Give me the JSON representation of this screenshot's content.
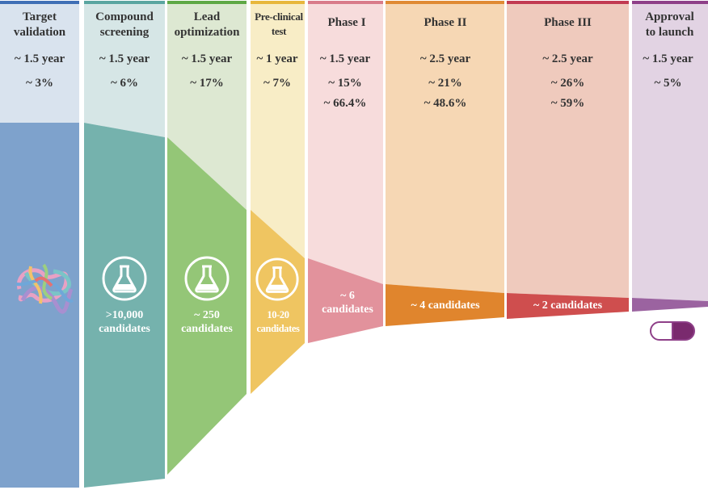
{
  "stages": [
    {
      "id": "target",
      "label": "Target\nvalidation",
      "duration": "~ 1.5 year",
      "cost": "~ 3%",
      "success": "",
      "candidates": "",
      "icon": "protein-icon",
      "colors": {
        "top": "#d9e3ee",
        "body": "#7ea2cc",
        "stripe": "#3f6fb5"
      }
    },
    {
      "id": "screening",
      "label": "Compound\nscreening",
      "duration": "~ 1.5 year",
      "cost": "~ 6%",
      "success": "",
      "candidates": ">10,000\ncandidates",
      "icon": "flask-icon",
      "colors": {
        "top": "#d6e6e6",
        "body": "#75b2ad",
        "stripe": "#5aa5a0"
      }
    },
    {
      "id": "lead",
      "label": "Lead\noptimization",
      "duration": "~ 1.5 year",
      "cost": "~ 17%",
      "success": "",
      "candidates": "~ 250\ncandidates",
      "icon": "flask-icon",
      "colors": {
        "top": "#dde8d2",
        "body": "#94c677",
        "stripe": "#5ea845"
      }
    },
    {
      "id": "preclinical",
      "label": "Pre-clinical\ntest",
      "duration": "~ 1 year",
      "cost": "~ 7%",
      "success": "",
      "candidates": "10-20\ncandidates",
      "icon": "flask-icon",
      "colors": {
        "top": "#f8edc6",
        "body": "#efc561",
        "stripe": "#e8b73c"
      }
    },
    {
      "id": "phase1",
      "label": "Phase I",
      "duration": "~ 1.5 year",
      "cost": "~ 15%",
      "success": "~ 66.4%",
      "candidates": "~ 6\ncandidates",
      "icon": "",
      "colors": {
        "top": "#f7dcdc",
        "body": "#e2929c",
        "stripe": "#d97b8a"
      }
    },
    {
      "id": "phase2",
      "label": "Phase II",
      "duration": "~ 2.5 year",
      "cost": "~ 21%",
      "success": "~ 48.6%",
      "candidates": "~ 4 candidates",
      "icon": "",
      "colors": {
        "top": "#f6d7b4",
        "body": "#e0852d",
        "stripe": "#e08a33"
      }
    },
    {
      "id": "phase3",
      "label": "Phase III",
      "duration": "~ 2.5 year",
      "cost": "~ 26%",
      "success": "~ 59%",
      "candidates": "~ 2 candidates",
      "icon": "",
      "colors": {
        "top": "#efcabd",
        "body": "#cf4e4e",
        "stripe": "#c23a52"
      }
    },
    {
      "id": "approval",
      "label": "Approval\nto launch",
      "duration": "~ 1.5 year",
      "cost": "~ 5%",
      "success": "",
      "candidates": "",
      "icon": "pill-icon",
      "colors": {
        "top": "#e2d3e3",
        "body": "#9b63a0",
        "stripe": "#8e3f88"
      }
    }
  ]
}
